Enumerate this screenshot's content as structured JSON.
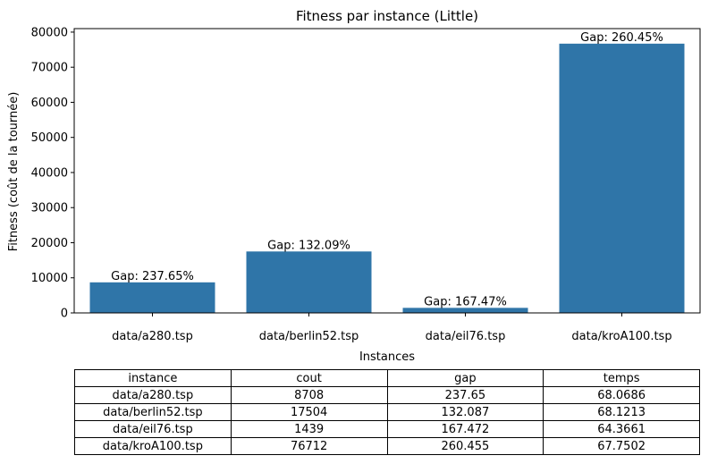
{
  "chart_data": {
    "type": "bar",
    "title": "Fitness par instance (Little)",
    "xlabel": "Instances",
    "ylabel": "Fitness (coût de la tournée)",
    "categories": [
      "data/a280.tsp",
      "data/berlin52.tsp",
      "data/eil76.tsp",
      "data/kroA100.tsp"
    ],
    "values": [
      8708,
      17504,
      1439,
      76712
    ],
    "bar_labels": [
      "Gap: 237.65%",
      "Gap: 132.09%",
      "Gap: 167.47%",
      "Gap: 260.45%"
    ],
    "ylim": [
      0,
      81000
    ],
    "yticks": [
      0,
      10000,
      20000,
      30000,
      40000,
      50000,
      60000,
      70000,
      80000
    ],
    "grid": false,
    "bar_color": "#2f75a8"
  },
  "table": {
    "headers": [
      "instance",
      "cout",
      "gap",
      "temps"
    ],
    "rows": [
      [
        "data/a280.tsp",
        "8708",
        "237.65",
        "68.0686"
      ],
      [
        "data/berlin52.tsp",
        "17504",
        "132.087",
        "68.1213"
      ],
      [
        "data/eil76.tsp",
        "1439",
        "167.472",
        "64.3661"
      ],
      [
        "data/kroA100.tsp",
        "76712",
        "260.455",
        "67.7502"
      ]
    ]
  }
}
